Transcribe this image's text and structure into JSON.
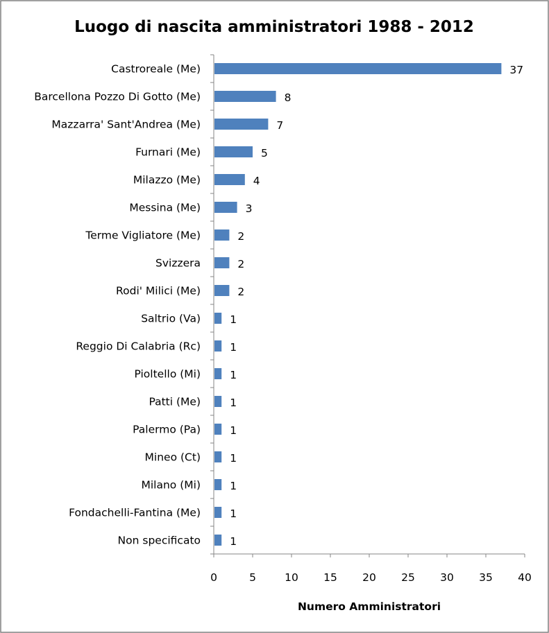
{
  "chart_data": {
    "type": "bar",
    "orientation": "horizontal",
    "title": "Luogo di nascita amministratori 1988 - 2012",
    "xlabel": "Numero Amministratori",
    "ylabel": "",
    "xlim": [
      0,
      40
    ],
    "x_ticks": [
      0,
      5,
      10,
      15,
      20,
      25,
      30,
      35,
      40
    ],
    "grid": false,
    "legend": "none",
    "bar_color": "#4F81BD",
    "categories": [
      "Castroreale (Me)",
      "Barcellona Pozzo Di Gotto (Me)",
      "Mazzarra' Sant'Andrea (Me)",
      "Furnari (Me)",
      "Milazzo (Me)",
      "Messina (Me)",
      "Terme Vigliatore (Me)",
      "Svizzera",
      "Rodi' Milici (Me)",
      "Saltrio (Va)",
      "Reggio Di Calabria (Rc)",
      "Pioltello (Mi)",
      "Patti (Me)",
      "Palermo (Pa)",
      "Mineo (Ct)",
      "Milano (Mi)",
      "Fondachelli-Fantina (Me)",
      "Non specificato"
    ],
    "values": [
      37,
      8,
      7,
      5,
      4,
      3,
      2,
      2,
      2,
      1,
      1,
      1,
      1,
      1,
      1,
      1,
      1,
      1
    ]
  }
}
